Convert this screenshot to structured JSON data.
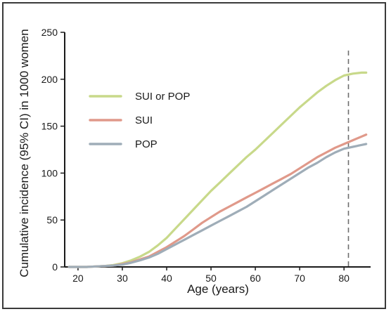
{
  "chart_data": {
    "type": "line",
    "title": "",
    "xlabel": "Age (years)",
    "ylabel": "Cumulative incidence (95% CI) in 1000 women",
    "xlim": [
      17,
      86
    ],
    "ylim": [
      0,
      250
    ],
    "x_ticks": [
      20,
      30,
      40,
      50,
      60,
      70,
      80
    ],
    "y_ticks": [
      0,
      50,
      100,
      150,
      200,
      250
    ],
    "grid": false,
    "legend_position": "upper-left",
    "reference_line": {
      "x": 81,
      "style": "dashed"
    },
    "series": [
      {
        "name": "SUI or POP",
        "color": "#c8d98a",
        "x": [
          18,
          20,
          22,
          24,
          26,
          28,
          30,
          32,
          34,
          36,
          38,
          40,
          42,
          44,
          46,
          48,
          50,
          52,
          54,
          56,
          58,
          60,
          62,
          64,
          66,
          68,
          70,
          72,
          74,
          76,
          78,
          80,
          82,
          84,
          85
        ],
        "y": [
          0,
          0,
          0,
          0.5,
          1,
          2,
          4,
          7,
          11,
          16,
          23,
          31,
          41,
          51,
          61,
          71,
          81,
          90,
          99,
          108,
          117,
          125,
          134,
          143,
          152,
          161,
          170,
          178,
          186,
          193,
          199,
          204,
          206,
          207,
          207
        ]
      },
      {
        "name": "SUI",
        "color": "#e0998a",
        "x": [
          18,
          20,
          22,
          24,
          26,
          28,
          30,
          32,
          34,
          36,
          38,
          40,
          42,
          44,
          46,
          48,
          50,
          52,
          54,
          56,
          58,
          60,
          62,
          64,
          66,
          68,
          70,
          72,
          74,
          76,
          78,
          80,
          82,
          84,
          85
        ],
        "y": [
          0,
          0,
          0,
          0.5,
          1,
          1.5,
          3,
          5,
          8,
          11,
          16,
          21,
          27,
          33,
          40,
          47,
          53,
          59,
          64,
          69,
          74,
          79,
          84,
          89,
          94,
          99,
          105,
          111,
          117,
          122,
          127,
          131,
          135,
          139,
          141
        ]
      },
      {
        "name": "POP",
        "color": "#9fadb8",
        "x": [
          18,
          20,
          22,
          24,
          26,
          28,
          30,
          32,
          34,
          36,
          38,
          40,
          42,
          44,
          46,
          48,
          50,
          52,
          54,
          56,
          58,
          60,
          62,
          64,
          66,
          68,
          70,
          72,
          74,
          76,
          78,
          80,
          82,
          84,
          85
        ],
        "y": [
          0,
          0,
          0,
          0.5,
          1,
          1.5,
          2.5,
          4.5,
          7,
          10,
          14,
          19,
          24,
          29,
          34,
          39,
          44,
          49,
          54,
          59,
          64,
          70,
          76,
          82,
          88,
          94,
          100,
          106,
          111,
          117,
          122,
          126,
          128,
          130,
          131
        ]
      }
    ]
  }
}
